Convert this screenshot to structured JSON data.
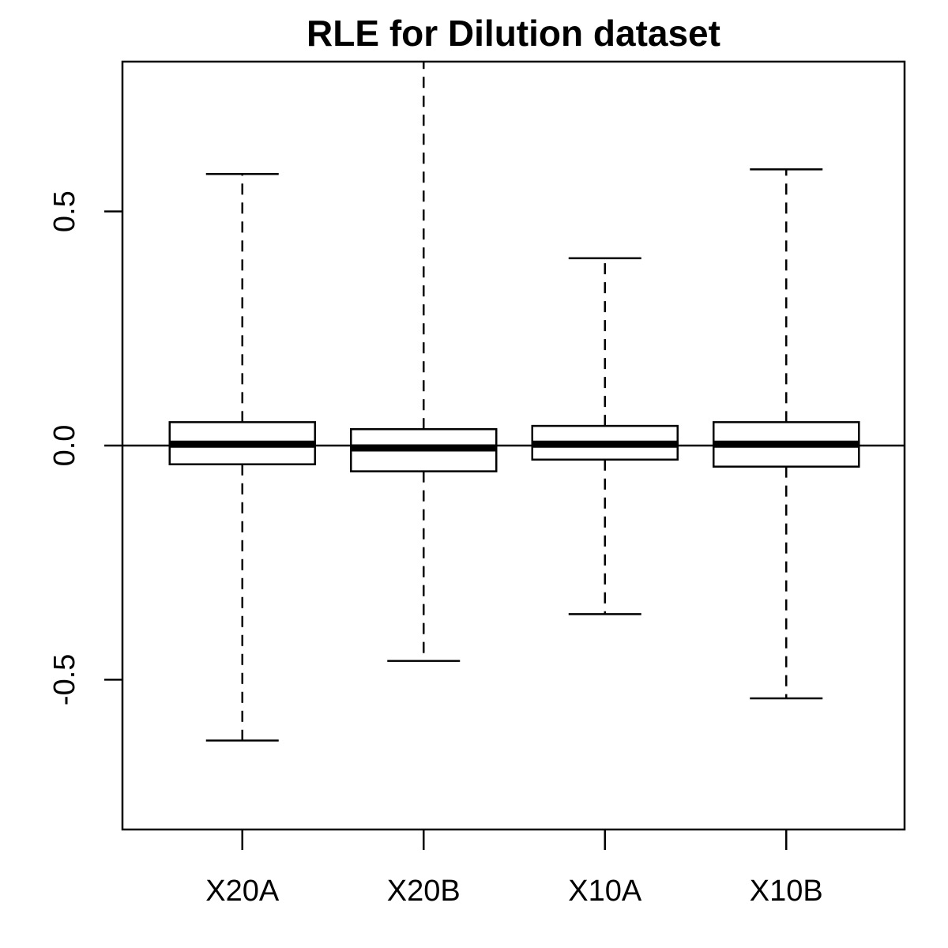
{
  "chart_data": {
    "type": "boxplot",
    "title": "RLE for Dilution dataset",
    "xlabel": "",
    "ylabel": "",
    "categories": [
      "X20A",
      "X20B",
      "X10A",
      "X10B"
    ],
    "ylim": [
      -0.82,
      0.82
    ],
    "yticks": [
      -0.5,
      0.0,
      0.5
    ],
    "ytick_labels": [
      "-0.5",
      "0.0",
      "0.5"
    ],
    "reference_line": 0,
    "boxes": [
      {
        "name": "X20A",
        "whisker_low": -0.63,
        "q1": -0.04,
        "median": 0.003,
        "q3": 0.05,
        "whisker_high": 0.58
      },
      {
        "name": "X20B",
        "whisker_low": -0.46,
        "q1": -0.055,
        "median": -0.005,
        "q3": 0.035,
        "whisker_high": 0.82
      },
      {
        "name": "X10A",
        "whisker_low": -0.36,
        "q1": -0.03,
        "median": 0.003,
        "q3": 0.042,
        "whisker_high": 0.4
      },
      {
        "name": "X10B",
        "whisker_low": -0.54,
        "q1": -0.045,
        "median": 0.003,
        "q3": 0.05,
        "whisker_high": 0.59
      }
    ],
    "colors": {
      "line": "#000000",
      "box_fill": "#ffffff",
      "background": "#ffffff"
    },
    "grid": false,
    "legend": "none"
  }
}
